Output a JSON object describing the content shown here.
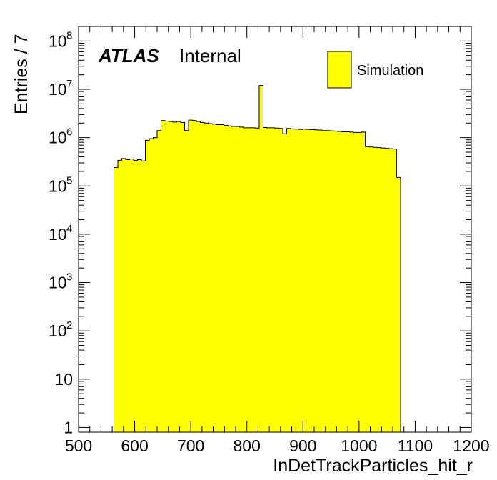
{
  "chart_data": {
    "type": "bar",
    "histogram": true,
    "xlabel": "InDetTrackParticles_hit_r",
    "ylabel": "Entries / 7",
    "atlas_label": "ATLAS",
    "atlas_sub": "Internal",
    "xlim": [
      500,
      1200
    ],
    "ylim": [
      0.8,
      200000000
    ],
    "yscale": "log",
    "grid": false,
    "legend_position": "top-right",
    "bin_width": 7,
    "x_ticks": [
      {
        "v": 500,
        "label": "500"
      },
      {
        "v": 600,
        "label": "600"
      },
      {
        "v": 700,
        "label": "700"
      },
      {
        "v": 800,
        "label": "800"
      },
      {
        "v": 900,
        "label": "900"
      },
      {
        "v": 1000,
        "label": "1000"
      },
      {
        "v": 1100,
        "label": "1100"
      },
      {
        "v": 1200,
        "label": "1200"
      }
    ],
    "y_ticks": [
      {
        "v": 1,
        "base": "1",
        "exp": ""
      },
      {
        "v": 10,
        "base": "10",
        "exp": ""
      },
      {
        "v": 100,
        "base": "10",
        "exp": "2"
      },
      {
        "v": 1000,
        "base": "10",
        "exp": "3"
      },
      {
        "v": 10000,
        "base": "10",
        "exp": "4"
      },
      {
        "v": 100000,
        "base": "10",
        "exp": "5"
      },
      {
        "v": 1000000,
        "base": "10",
        "exp": "6"
      },
      {
        "v": 10000000,
        "base": "10",
        "exp": "7"
      },
      {
        "v": 100000000,
        "base": "10",
        "exp": "8"
      }
    ],
    "series": [
      {
        "name": "Simulation",
        "color": "#ffff00",
        "edges": [
          563,
          570,
          577,
          584,
          591,
          598,
          605,
          612,
          619,
          626,
          633,
          640,
          647,
          654,
          661,
          668,
          675,
          682,
          689,
          696,
          703,
          710,
          717,
          724,
          731,
          738,
          745,
          752,
          759,
          766,
          773,
          780,
          787,
          794,
          801,
          808,
          815,
          822,
          829,
          836,
          843,
          850,
          857,
          864,
          871,
          878,
          885,
          892,
          899,
          906,
          913,
          920,
          927,
          934,
          941,
          948,
          955,
          962,
          969,
          976,
          983,
          990,
          997,
          1004,
          1011,
          1018,
          1025,
          1032,
          1039,
          1046,
          1053,
          1060,
          1067,
          1074
        ],
        "values": [
          240000,
          340000,
          370000,
          350000,
          360000,
          340000,
          350000,
          330000,
          880000,
          950000,
          1000000,
          1400000,
          2250000,
          2200000,
          2150000,
          2100000,
          2150000,
          2050000,
          1400000,
          2300000,
          2250000,
          2150000,
          2050000,
          2000000,
          1950000,
          1900000,
          1850000,
          1850000,
          1800000,
          1750000,
          1700000,
          1700000,
          1650000,
          1600000,
          1600000,
          1600000,
          1580000,
          12000000,
          1620000,
          1600000,
          1600000,
          1580000,
          1550000,
          1200000,
          1550000,
          1520000,
          1500000,
          1480000,
          1500000,
          1480000,
          1460000,
          1450000,
          1430000,
          1400000,
          1400000,
          1380000,
          1360000,
          1340000,
          1320000,
          1320000,
          1300000,
          1280000,
          1280000,
          1300000,
          650000,
          640000,
          630000,
          620000,
          610000,
          600000,
          590000,
          580000,
          150000
        ]
      }
    ]
  }
}
